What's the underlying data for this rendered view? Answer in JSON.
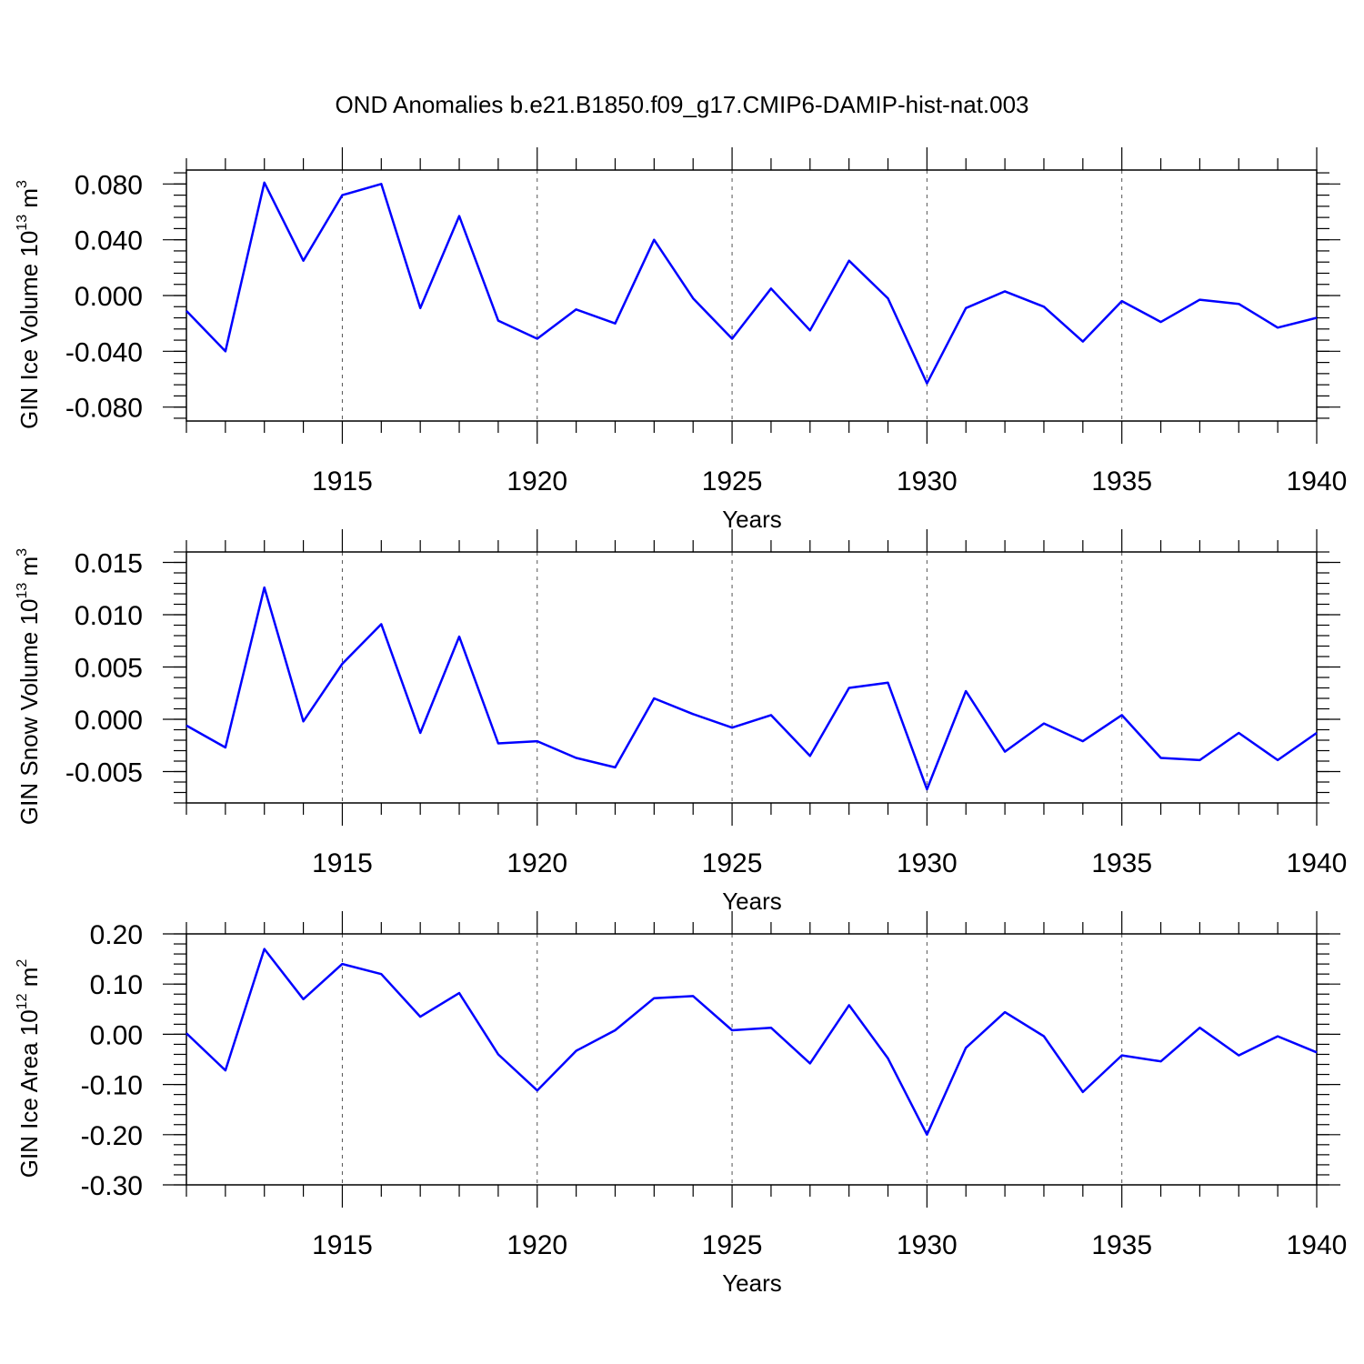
{
  "title": "OND Anomalies b.e21.B1850.f09_g17.CMIP6-DAMIP-hist-nat.003",
  "line_color": "#0000ff",
  "chart_data": [
    {
      "type": "line",
      "ylabel": {
        "main": "GIN Ice Volume 10",
        "sup": "13",
        "unit": " m",
        "unit_sup": "3"
      },
      "xlabel": "Years",
      "xlim": [
        1911,
        1940
      ],
      "ylim": [
        -0.09,
        0.09
      ],
      "xticks": [
        1915,
        1920,
        1925,
        1930,
        1935,
        1940
      ],
      "yticks": [
        0.08,
        0.04,
        0.0,
        -0.04,
        -0.08
      ],
      "ytick_labels": [
        "0.080",
        "0.040",
        "0.000",
        "-0.040",
        "-0.080"
      ],
      "y_minor_step": 0.008,
      "grid_x": true,
      "x": [
        1911,
        1912,
        1913,
        1914,
        1915,
        1916,
        1917,
        1918,
        1919,
        1920,
        1921,
        1922,
        1923,
        1924,
        1925,
        1926,
        1927,
        1928,
        1929,
        1930,
        1931,
        1932,
        1933,
        1934,
        1935,
        1936,
        1937,
        1938,
        1939,
        1940
      ],
      "y": [
        -0.011,
        -0.04,
        0.081,
        0.025,
        0.072,
        0.08,
        -0.009,
        0.057,
        -0.018,
        -0.031,
        -0.01,
        -0.02,
        0.04,
        -0.002,
        -0.031,
        0.005,
        -0.025,
        0.025,
        -0.002,
        -0.063,
        -0.009,
        0.003,
        -0.008,
        -0.033,
        -0.004,
        -0.019,
        -0.003,
        -0.006,
        -0.023,
        -0.016
      ]
    },
    {
      "type": "line",
      "ylabel": {
        "main": "GIN Snow Volume 10",
        "sup": "13",
        "unit": " m",
        "unit_sup": "3"
      },
      "xlabel": "Years",
      "xlim": [
        1911,
        1940
      ],
      "ylim": [
        -0.008,
        0.016
      ],
      "xticks": [
        1915,
        1920,
        1925,
        1930,
        1935,
        1940
      ],
      "yticks": [
        0.015,
        0.01,
        0.005,
        0.0,
        -0.005
      ],
      "ytick_labels": [
        "0.015",
        "0.010",
        "0.005",
        "0.000",
        "-0.005"
      ],
      "y_minor_step": 0.001,
      "grid_x": true,
      "x": [
        1911,
        1912,
        1913,
        1914,
        1915,
        1916,
        1917,
        1918,
        1919,
        1920,
        1921,
        1922,
        1923,
        1924,
        1925,
        1926,
        1927,
        1928,
        1929,
        1930,
        1931,
        1932,
        1933,
        1934,
        1935,
        1936,
        1937,
        1938,
        1939,
        1940
      ],
      "y": [
        -0.0006,
        -0.0027,
        0.0126,
        -0.0002,
        0.0053,
        0.0091,
        -0.0013,
        0.0079,
        -0.0023,
        -0.0021,
        -0.0037,
        -0.0046,
        0.002,
        0.0005,
        -0.0008,
        0.0004,
        -0.0035,
        0.003,
        0.0035,
        -0.0067,
        0.0027,
        -0.0031,
        -0.0004,
        -0.0021,
        0.0004,
        -0.0037,
        -0.0039,
        -0.0013,
        -0.0039,
        -0.0013
      ]
    },
    {
      "type": "line",
      "ylabel": {
        "main": "GIN Ice Area 10",
        "sup": "12",
        "unit": " m",
        "unit_sup": "2"
      },
      "xlabel": "Years",
      "xlim": [
        1911,
        1940
      ],
      "ylim": [
        -0.3,
        0.2
      ],
      "xticks": [
        1915,
        1920,
        1925,
        1930,
        1935,
        1940
      ],
      "yticks": [
        0.2,
        0.1,
        0.0,
        -0.1,
        -0.2,
        -0.3
      ],
      "ytick_labels": [
        "0.20",
        "0.10",
        "0.00",
        "-0.10",
        "-0.20",
        "-0.30"
      ],
      "y_minor_step": 0.02,
      "grid_x": true,
      "x": [
        1911,
        1912,
        1913,
        1914,
        1915,
        1916,
        1917,
        1918,
        1919,
        1920,
        1921,
        1922,
        1923,
        1924,
        1925,
        1926,
        1927,
        1928,
        1929,
        1930,
        1931,
        1932,
        1933,
        1934,
        1935,
        1936,
        1937,
        1938,
        1939,
        1940
      ],
      "y": [
        0.002,
        -0.072,
        0.17,
        0.07,
        0.14,
        0.12,
        0.035,
        0.082,
        -0.04,
        -0.112,
        -0.033,
        0.008,
        0.072,
        0.076,
        0.008,
        0.013,
        -0.058,
        0.058,
        -0.048,
        -0.2,
        -0.027,
        0.044,
        -0.004,
        -0.115,
        -0.042,
        -0.054,
        0.013,
        -0.042,
        -0.004,
        -0.036
      ]
    }
  ]
}
